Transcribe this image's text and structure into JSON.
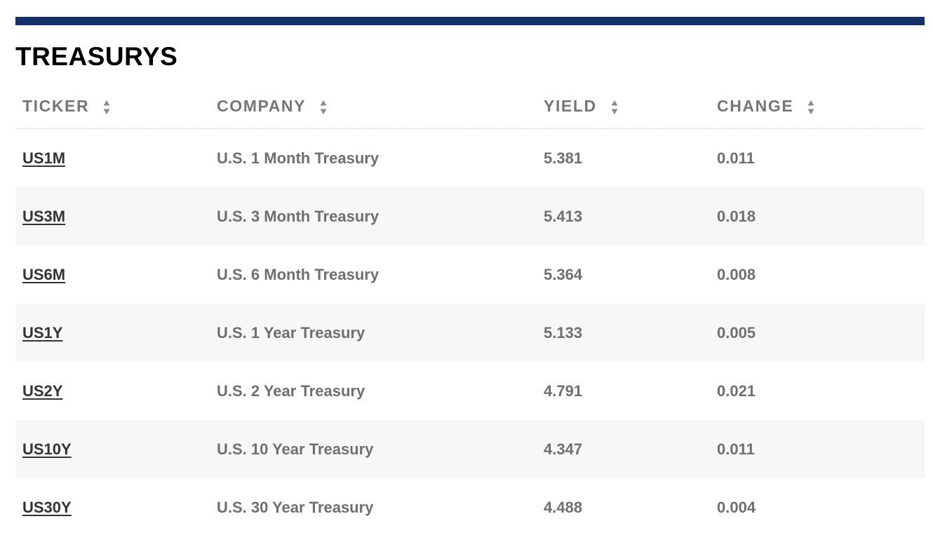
{
  "section": {
    "title": "TREASURYS",
    "accent_color": "#13306b"
  },
  "table": {
    "columns": [
      {
        "label": "TICKER",
        "icon": "sort-icon"
      },
      {
        "label": "COMPANY",
        "icon": "sort-icon"
      },
      {
        "label": "YIELD",
        "icon": "sort-icon"
      },
      {
        "label": "CHANGE",
        "icon": "sort-icon"
      }
    ],
    "rows": [
      {
        "ticker": "US1M",
        "company": "U.S. 1 Month Treasury",
        "yield": "5.381",
        "change": "0.011"
      },
      {
        "ticker": "US3M",
        "company": "U.S. 3 Month Treasury",
        "yield": "5.413",
        "change": "0.018"
      },
      {
        "ticker": "US6M",
        "company": "U.S. 6 Month Treasury",
        "yield": "5.364",
        "change": "0.008"
      },
      {
        "ticker": "US1Y",
        "company": "U.S. 1 Year Treasury",
        "yield": "5.133",
        "change": "0.005"
      },
      {
        "ticker": "US2Y",
        "company": "U.S. 2 Year Treasury",
        "yield": "4.791",
        "change": "0.021"
      },
      {
        "ticker": "US10Y",
        "company": "U.S. 10 Year Treasury",
        "yield": "4.347",
        "change": "0.011"
      },
      {
        "ticker": "US30Y",
        "company": "U.S. 30 Year Treasury",
        "yield": "4.488",
        "change": "0.004"
      }
    ]
  }
}
